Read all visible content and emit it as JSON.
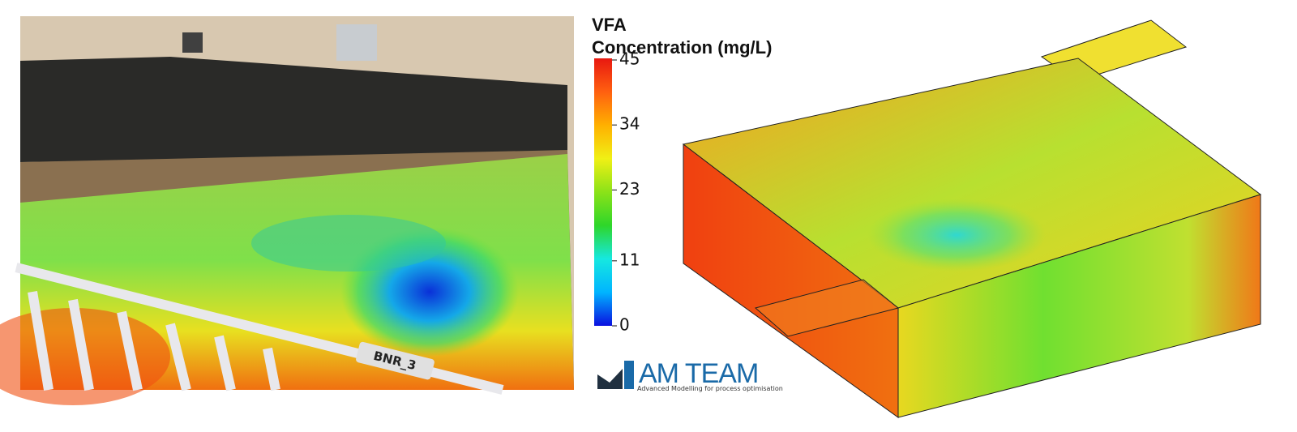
{
  "colorbar": {
    "title": [
      "VFA",
      "Concentration (mg/L)"
    ],
    "lim": [
      0,
      45
    ],
    "ticks": [
      0,
      11,
      23,
      34,
      45
    ],
    "colors": [
      "#0a10e0",
      "#00b4ff",
      "#16e8e0",
      "#2ed62a",
      "#8be218",
      "#f0f015",
      "#ffb000",
      "#ff6010",
      "#e81810"
    ]
  },
  "photo_label": "BNR_3",
  "logo": {
    "name": "AM TEAM",
    "tagline": "Advanced Modelling for process optimisation"
  }
}
